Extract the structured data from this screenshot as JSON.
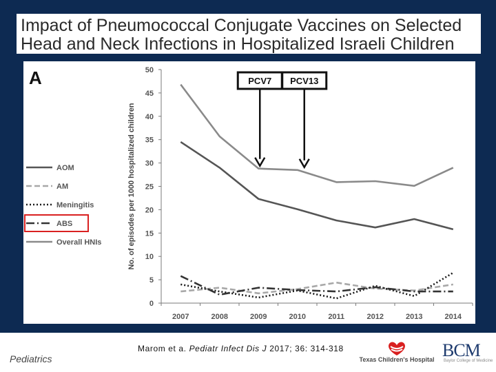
{
  "slide": {
    "title_line1": "Impact of Pneumococcal Conjugate Vaccines on Selected",
    "title_line2": "Head and Neck Infections in Hospitalized Israeli Children",
    "footer_left": "Pediatrics",
    "citation_prefix": "Marom et a. ",
    "citation_journal": "Pediatr Infect Dis J",
    "citation_suffix": " 2017; 36: 314-318",
    "logo_tch": "Texas Children's Hospital",
    "logo_bcm": "BCM",
    "logo_bcm_sub": "Baylor College of Medicine",
    "colors": {
      "band": "#0d2a52",
      "highlight": "#d92020"
    }
  },
  "chart_data": {
    "type": "line",
    "panel_label": "A",
    "x": [
      "2007",
      "2008",
      "2009",
      "2010",
      "2011",
      "2012",
      "2013",
      "2014"
    ],
    "ylabel": "No. of episodes per 1000 hospitalized children",
    "ylim": [
      0,
      50
    ],
    "yticks": [
      0,
      5,
      10,
      15,
      20,
      25,
      30,
      35,
      40,
      45,
      50
    ],
    "grid": false,
    "legend_position": "left",
    "highlighted_legend_entry": "ABS",
    "series": [
      {
        "name": "AOM",
        "style": "solid-dark",
        "values": [
          34.5,
          29,
          22.3,
          20.1,
          17.7,
          16.2,
          18,
          15.8
        ]
      },
      {
        "name": "AM",
        "style": "dashed-light",
        "values": [
          2.5,
          3.3,
          2.1,
          3,
          4.4,
          3.1,
          2.7,
          4
        ]
      },
      {
        "name": "Meningitis",
        "style": "dotted",
        "values": [
          4,
          2.5,
          1.2,
          2.7,
          1,
          3.7,
          1.5,
          6.5
        ]
      },
      {
        "name": "ABS",
        "style": "dashdot-dark",
        "values": [
          5.8,
          1.8,
          3.3,
          2.8,
          2.5,
          3.4,
          2.5,
          2.5
        ]
      },
      {
        "name": "Overall HNIs",
        "style": "solid-light",
        "values": [
          46.8,
          35.7,
          28.8,
          28.5,
          25.9,
          26.1,
          25.1,
          29
        ]
      }
    ],
    "annotations": [
      {
        "text": "PCV7",
        "points_to_x": "2009"
      },
      {
        "text": "PCV13",
        "points_to_x": "2010"
      }
    ]
  }
}
